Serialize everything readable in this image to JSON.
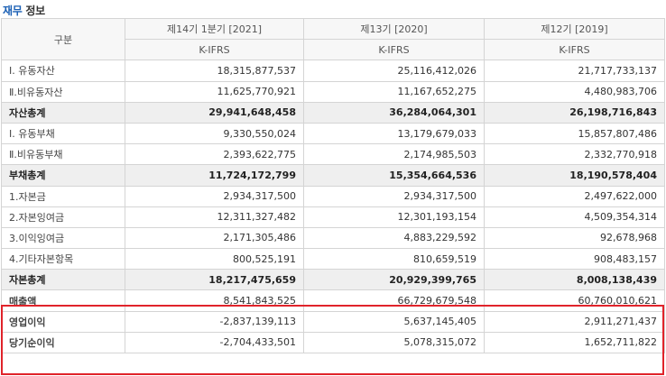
{
  "title": {
    "accent": "재무",
    "rest": " 정보"
  },
  "header": {
    "label_col": "구분",
    "periods": [
      "제14기 1분기 [2021]",
      "제13기 [2020]",
      "제12기 [2019]"
    ],
    "standards": [
      "K-IFRS",
      "K-IFRS",
      "K-IFRS"
    ]
  },
  "rows": [
    {
      "label": "Ⅰ. 유동자산",
      "values": [
        "18,315,877,537",
        "25,116,412,026",
        "21,717,733,137"
      ],
      "style": "normal"
    },
    {
      "label": "Ⅱ.비유동자산",
      "values": [
        "11,625,770,921",
        "11,167,652,275",
        "4,480,983,706"
      ],
      "style": "normal"
    },
    {
      "label": "자산총계",
      "values": [
        "29,941,648,458",
        "36,284,064,301",
        "26,198,716,843"
      ],
      "style": "total"
    },
    {
      "label": "Ⅰ. 유동부채",
      "values": [
        "9,330,550,024",
        "13,179,679,033",
        "15,857,807,486"
      ],
      "style": "normal"
    },
    {
      "label": "Ⅱ.비유동부채",
      "values": [
        "2,393,622,775",
        "2,174,985,503",
        "2,332,770,918"
      ],
      "style": "normal"
    },
    {
      "label": "부채총계",
      "values": [
        "11,724,172,799",
        "15,354,664,536",
        "18,190,578,404"
      ],
      "style": "total"
    },
    {
      "label": "1.자본금",
      "values": [
        "2,934,317,500",
        "2,934,317,500",
        "2,497,622,000"
      ],
      "style": "normal"
    },
    {
      "label": "2.자본잉여금",
      "values": [
        "12,311,327,482",
        "12,301,193,154",
        "4,509,354,314"
      ],
      "style": "normal"
    },
    {
      "label": "3.이익잉여금",
      "values": [
        "2,171,305,486",
        "4,883,229,592",
        "92,678,968"
      ],
      "style": "normal"
    },
    {
      "label": "4.기타자본항목",
      "values": [
        "800,525,191",
        "810,659,519",
        "908,483,157"
      ],
      "style": "normal"
    },
    {
      "label": "자본총계",
      "values": [
        "18,217,475,659",
        "20,929,399,765",
        "8,008,138,439"
      ],
      "style": "total"
    },
    {
      "label": "매출액",
      "values": [
        "8,541,843,525",
        "66,729,679,548",
        "60,760,010,621"
      ],
      "style": "bold"
    },
    {
      "label": "영업이익",
      "values": [
        "-2,837,139,113",
        "5,637,145,405",
        "2,911,271,437"
      ],
      "style": "bold"
    },
    {
      "label": "당기순이익",
      "values": [
        "-2,704,433,501",
        "5,078,315,072",
        "1,652,711,822"
      ],
      "style": "bold"
    }
  ],
  "colors": {
    "highlight": "#e0232a",
    "accent": "#1a5fb4"
  }
}
